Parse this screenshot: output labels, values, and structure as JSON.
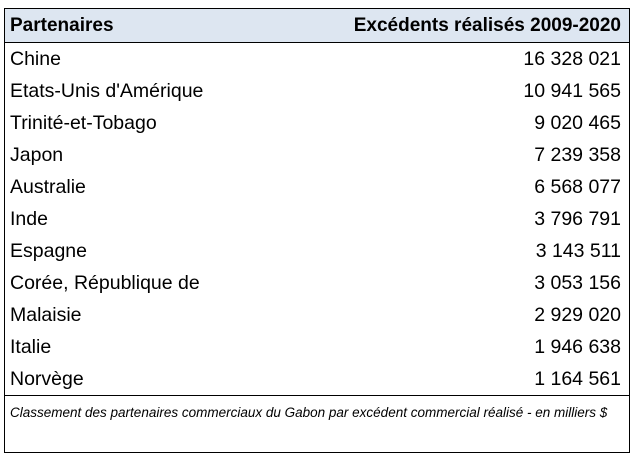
{
  "chart_data": {
    "type": "table",
    "columns": [
      "Partenaires",
      "Excédents réalisés 2009-2020"
    ],
    "rows": [
      {
        "partner": "Chine",
        "value_text": "16 328 021",
        "value": 16328021
      },
      {
        "partner": "Etats-Unis d'Amérique",
        "value_text": "10 941 565",
        "value": 10941565
      },
      {
        "partner": "Trinité-et-Tobago",
        "value_text": "9 020 465",
        "value": 9020465
      },
      {
        "partner": "Japon",
        "value_text": "7 239 358",
        "value": 7239358
      },
      {
        "partner": "Australie",
        "value_text": "6 568 077",
        "value": 6568077
      },
      {
        "partner": "Inde",
        "value_text": "3 796 791",
        "value": 3796791
      },
      {
        "partner": "Espagne",
        "value_text": "3 143 511",
        "value": 3143511
      },
      {
        "partner": "Corée, République de",
        "value_text": "3 053 156",
        "value": 3053156
      },
      {
        "partner": "Malaisie",
        "value_text": "2 929 020",
        "value": 2929020
      },
      {
        "partner": "Italie",
        "value_text": "1 946 638",
        "value": 1946638
      },
      {
        "partner": "Norvège",
        "value_text": "1 164 561",
        "value": 1164561
      }
    ],
    "caption": "Classement des partenaires commerciaux du Gabon par excédent commercial réalisé - en milliers $"
  },
  "colors": {
    "header_background": "#dde6f1",
    "border": "#000000",
    "text": "#000000"
  }
}
